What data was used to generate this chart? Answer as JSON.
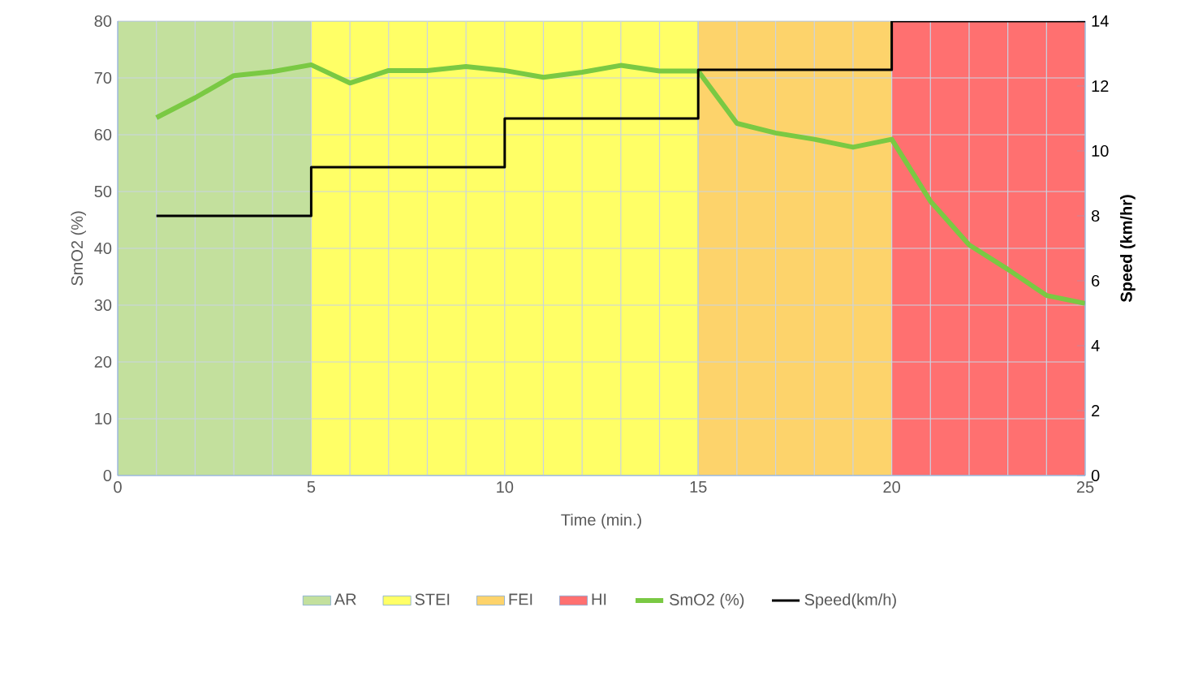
{
  "chart_data": {
    "type": "line",
    "xlabel": "Time (min.)",
    "ylabel": "SmO2 (%)",
    "y2label": "Speed (km/hr)",
    "xlim": [
      0,
      25
    ],
    "xticks": [
      0,
      5,
      10,
      15,
      20,
      25
    ],
    "ylim": [
      0,
      80
    ],
    "yticks": [
      0,
      10,
      20,
      30,
      40,
      50,
      60,
      70,
      80
    ],
    "y2lim": [
      0,
      14
    ],
    "y2ticks": [
      0,
      2,
      4,
      6,
      8,
      10,
      12,
      14
    ],
    "grid": true,
    "legend": "bottom",
    "bands": [
      {
        "axis": "x",
        "from": 0,
        "to": 5,
        "label": "AR",
        "color": "#c3e09d"
      },
      {
        "axis": "x",
        "from": 5,
        "to": 15,
        "label": "STEI",
        "color": "#ffff66"
      },
      {
        "axis": "x",
        "from": 15,
        "to": 20,
        "label": "FEI",
        "color": "#fdd36b"
      },
      {
        "axis": "x",
        "from": 20,
        "to": 25,
        "label": "HI",
        "color": "#ff7070"
      }
    ],
    "series": [
      {
        "name": "SmO2 (%)",
        "color": "#7ac943",
        "x": [
          1,
          2,
          3,
          4,
          5,
          6,
          7,
          8,
          9,
          10,
          11,
          12,
          13,
          14,
          15,
          16,
          17,
          18,
          19,
          20,
          21,
          22,
          23,
          24,
          25
        ],
        "values": [
          63,
          66.5,
          70.4,
          71.1,
          72.3,
          69.1,
          71.3,
          71.3,
          72,
          71.3,
          70.1,
          71,
          72.2,
          71.2,
          71.2,
          62,
          60.3,
          59.2,
          57.8,
          59.2,
          48.3,
          40.6,
          36.3,
          31.7,
          30.3
        ]
      },
      {
        "name": "Speed(km/h)",
        "type": "step",
        "axis": "y2",
        "color": "#000000",
        "x": [
          1,
          5,
          10,
          15,
          20,
          25
        ],
        "values": [
          8,
          9.5,
          11,
          12.5,
          14,
          14
        ]
      }
    ]
  }
}
